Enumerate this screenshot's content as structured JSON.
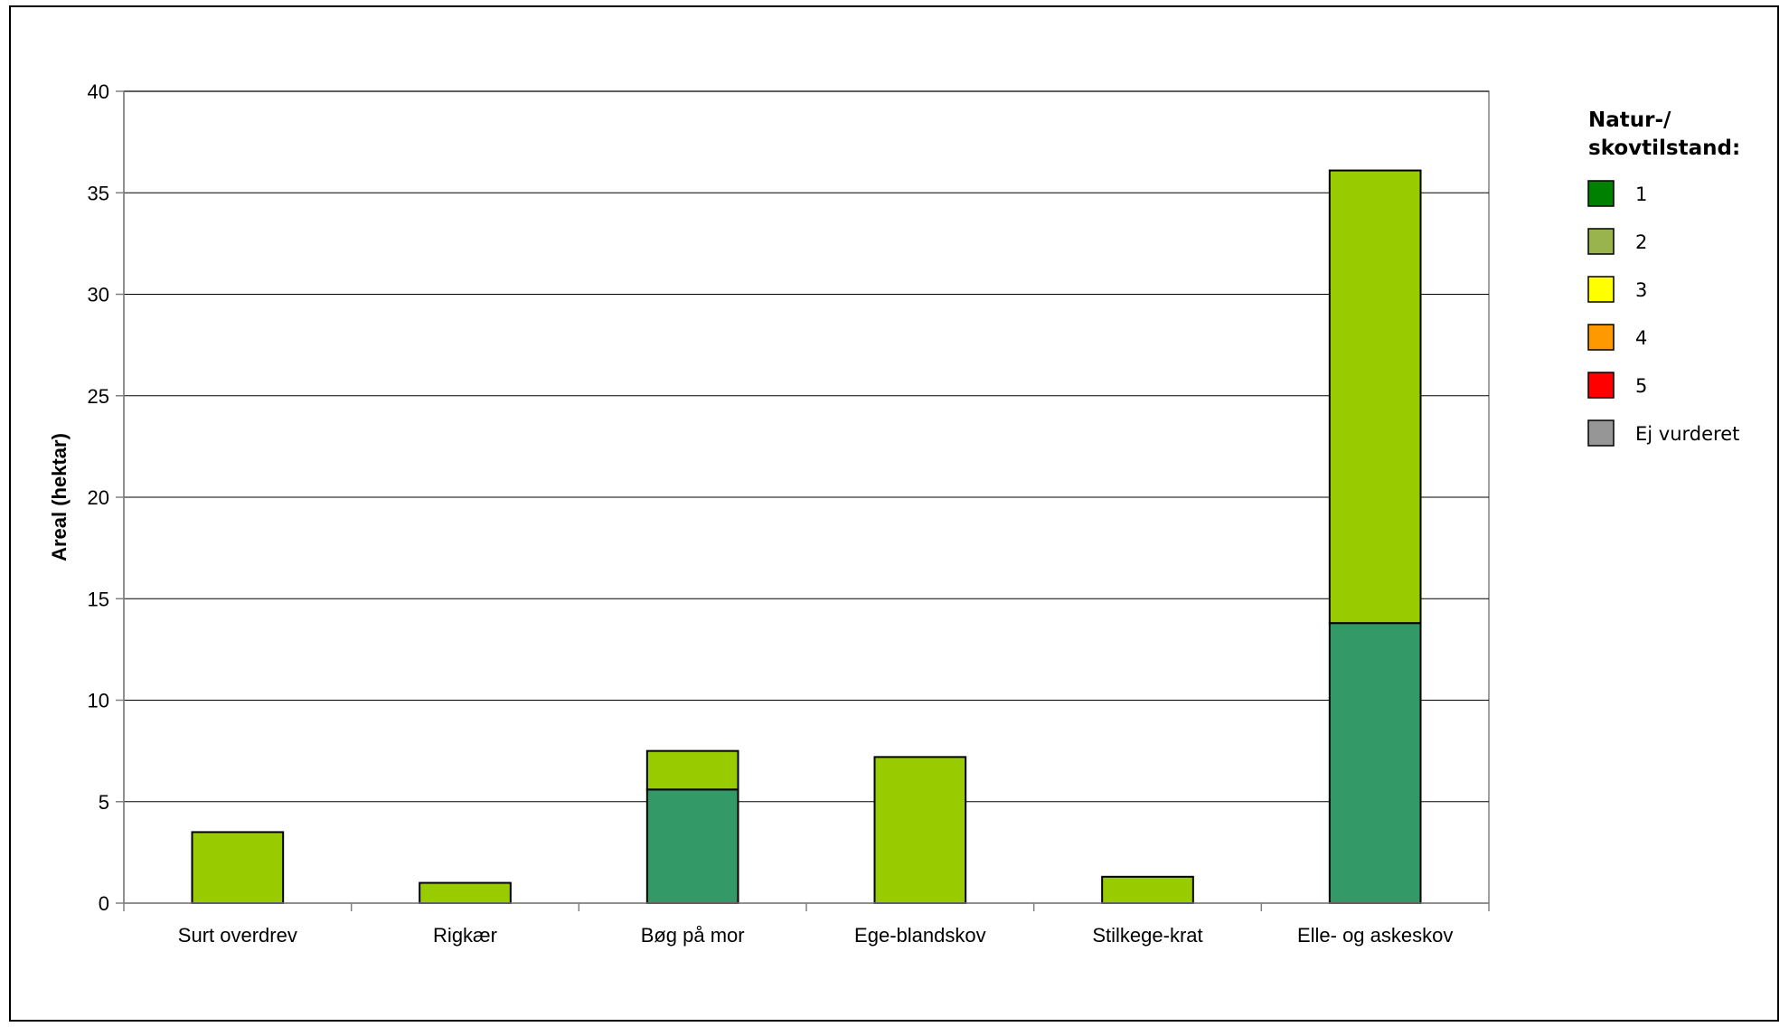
{
  "chart_data": {
    "type": "bar",
    "stacked": true,
    "title": "",
    "xlabel": "",
    "ylabel": "Areal (hektar)",
    "ylim": [
      0,
      40
    ],
    "yticks": [
      0,
      5,
      10,
      15,
      20,
      25,
      30,
      35,
      40
    ],
    "grid": true,
    "legend_position": "right",
    "categories": [
      "Surt overdrev",
      "Rigkær",
      "Bøg på mor",
      "Ege-blandskov",
      "Stilkege-krat",
      "Elle- og askeskov"
    ],
    "series": [
      {
        "name": "1",
        "color": "#339966",
        "values": [
          0,
          0,
          5.6,
          0,
          0,
          13.8
        ]
      },
      {
        "name": "2",
        "color": "#99CC00",
        "values": [
          3.5,
          1.0,
          1.9,
          7.2,
          1.3,
          22.3
        ]
      },
      {
        "name": "3",
        "color": "#FFFF00",
        "values": [
          0,
          0,
          0,
          0,
          0,
          0
        ]
      },
      {
        "name": "4",
        "color": "#FF9900",
        "values": [
          0,
          0,
          0,
          0,
          0,
          0
        ]
      },
      {
        "name": "5",
        "color": "#FF0000",
        "values": [
          0,
          0,
          0,
          0,
          0,
          0
        ]
      },
      {
        "name": "Ej vurderet",
        "color": "#969696",
        "values": [
          0,
          0,
          0,
          0,
          0,
          0
        ]
      }
    ],
    "legend": {
      "title_lines": [
        "Natur-/",
        "skovtilstand:"
      ],
      "entries": [
        {
          "label": "1",
          "color": "#008000"
        },
        {
          "label": "2",
          "color": "#99B34D"
        },
        {
          "label": "3",
          "color": "#FFFF00"
        },
        {
          "label": "4",
          "color": "#FF9900"
        },
        {
          "label": "5",
          "color": "#FF0000"
        },
        {
          "label": "Ej vurderet",
          "color": "#969696"
        }
      ]
    }
  }
}
